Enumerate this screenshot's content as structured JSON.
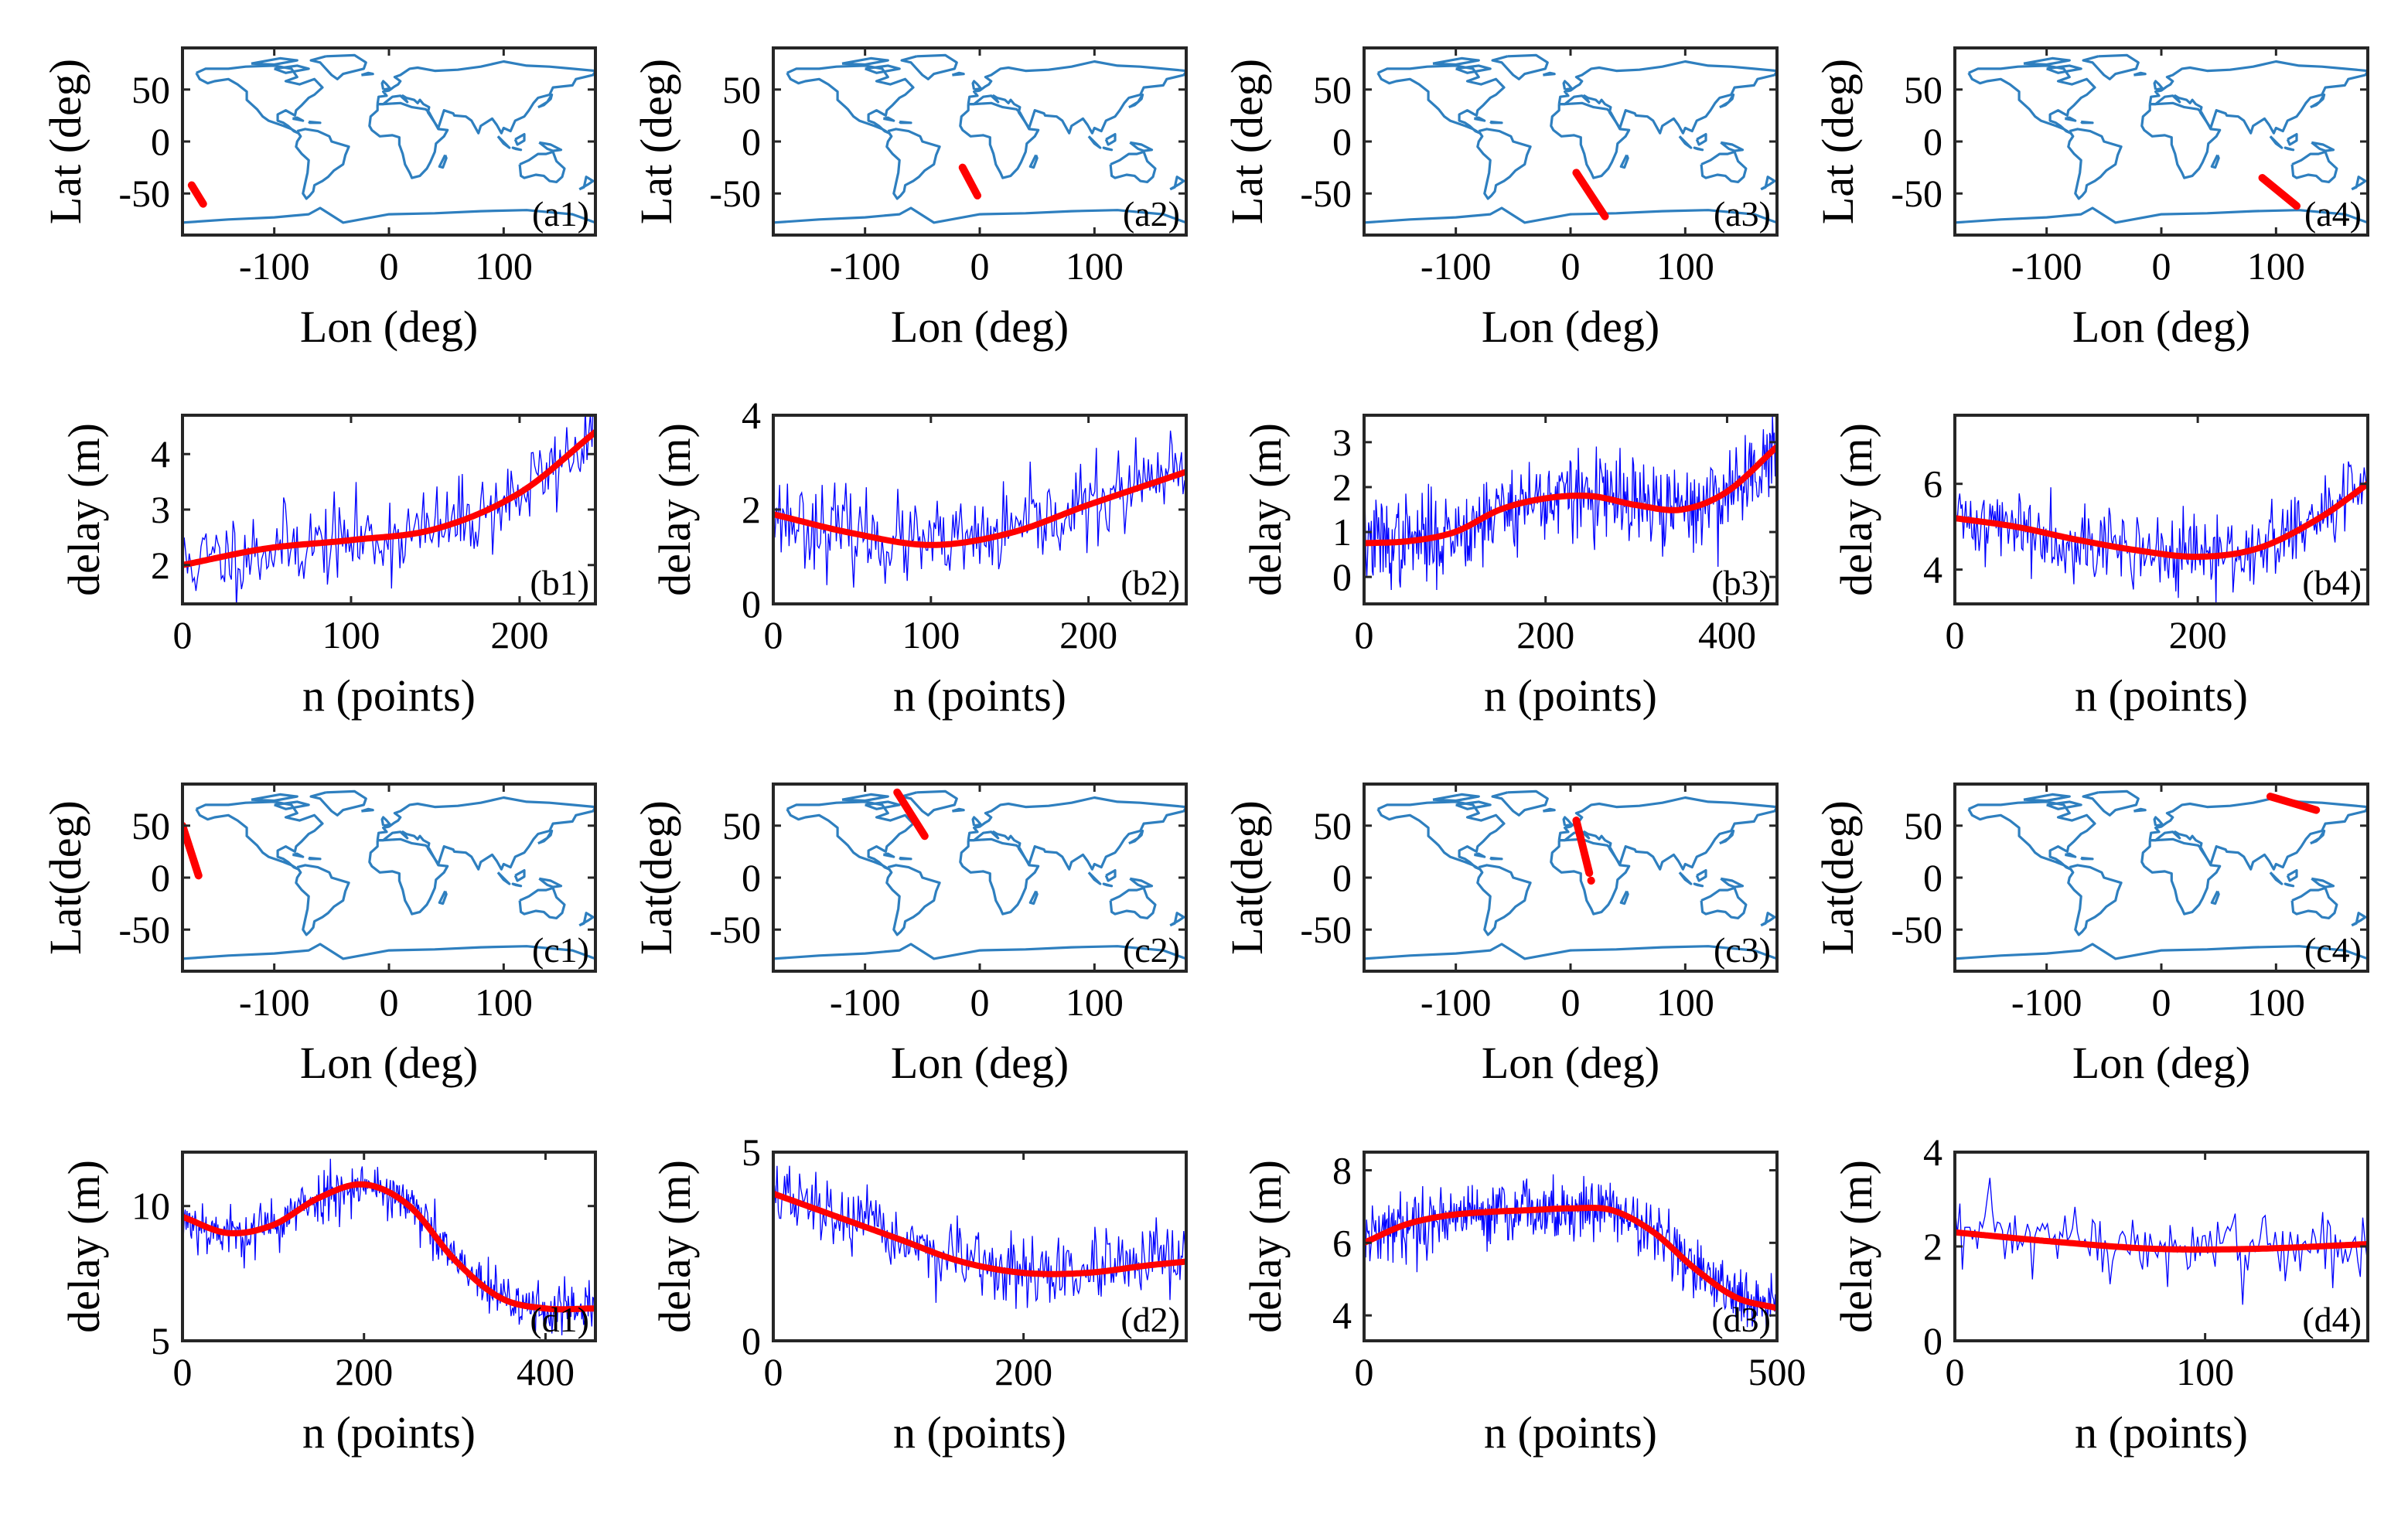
{
  "chart_data": [
    {
      "id": "a1",
      "type": "map",
      "label": "(a1)",
      "xlabel": "Lon (deg)",
      "ylabel": "Lat (deg)",
      "xlim": [
        -180,
        180
      ],
      "ylim": [
        -90,
        90
      ],
      "xticks": [
        -100,
        0,
        100
      ],
      "yticks": [
        -50,
        0,
        50
      ],
      "track": {
        "lon": [
          -172,
          -162
        ],
        "lat": [
          -42,
          -60
        ]
      },
      "colors": {
        "coast": "#2e7fbf",
        "track": "#ff0000"
      }
    },
    {
      "id": "a2",
      "type": "map",
      "label": "(a2)",
      "xlabel": "Lon (deg)",
      "ylabel": "Lat (deg)",
      "xlim": [
        -180,
        180
      ],
      "ylim": [
        -90,
        90
      ],
      "xticks": [
        -100,
        0,
        100
      ],
      "yticks": [
        -50,
        0,
        50
      ],
      "track": {
        "lon": [
          -15,
          -2
        ],
        "lat": [
          -25,
          -52
        ]
      },
      "colors": {
        "coast": "#2e7fbf",
        "track": "#ff0000"
      }
    },
    {
      "id": "a3",
      "type": "map",
      "label": "(a3)",
      "xlabel": "Lon (deg)",
      "ylabel": "Lat (deg)",
      "xlim": [
        -180,
        180
      ],
      "ylim": [
        -90,
        90
      ],
      "xticks": [
        -100,
        0,
        100
      ],
      "yticks": [
        -50,
        0,
        50
      ],
      "track": {
        "lon": [
          5,
          30
        ],
        "lat": [
          -30,
          -72
        ]
      },
      "colors": {
        "coast": "#2e7fbf",
        "track": "#ff0000"
      }
    },
    {
      "id": "a4",
      "type": "map",
      "label": "(a4)",
      "xlabel": "Lon (deg)",
      "ylabel": "Lat (deg)",
      "xlim": [
        -180,
        180
      ],
      "ylim": [
        -90,
        90
      ],
      "xticks": [
        -100,
        0,
        100
      ],
      "yticks": [
        -50,
        0,
        50
      ],
      "track": {
        "lon": [
          88,
          118
        ],
        "lat": [
          -35,
          -62
        ]
      },
      "colors": {
        "coast": "#2e7fbf",
        "track": "#ff0000"
      }
    },
    {
      "id": "b1",
      "type": "line",
      "label": "(b1)",
      "xlabel": "n (points)",
      "ylabel": "delay (m)",
      "xlim": [
        0,
        245
      ],
      "ylim": [
        1.3,
        4.7
      ],
      "xticks": [
        0,
        100,
        200
      ],
      "yticks": [
        2,
        3,
        4
      ],
      "fit": {
        "x": [
          0,
          50,
          100,
          150,
          200,
          245
        ],
        "y": [
          2.0,
          2.3,
          2.45,
          2.65,
          3.3,
          4.4
        ]
      },
      "noise_sd": 0.38,
      "seed": 11,
      "colors": {
        "noisy": "#0000ff",
        "fit": "#ff0000"
      }
    },
    {
      "id": "b2",
      "type": "line",
      "label": "(b2)",
      "xlabel": "n (points)",
      "ylabel": "delay (m)",
      "xlim": [
        0,
        262
      ],
      "ylim": [
        0,
        4
      ],
      "xticks": [
        0,
        100,
        200
      ],
      "yticks": [
        0,
        2,
        4
      ],
      "fit": {
        "x": [
          0,
          50,
          100,
          150,
          200,
          262
        ],
        "y": [
          1.9,
          1.5,
          1.25,
          1.5,
          2.1,
          2.8
        ]
      },
      "noise_sd": 0.45,
      "seed": 23,
      "colors": {
        "noisy": "#0000ff",
        "fit": "#ff0000"
      }
    },
    {
      "id": "b3",
      "type": "line",
      "label": "(b3)",
      "xlabel": "n (points)",
      "ylabel": "delay (m)",
      "xlim": [
        0,
        455
      ],
      "ylim": [
        -0.6,
        3.6
      ],
      "xticks": [
        0,
        200,
        400
      ],
      "yticks": [
        0,
        1,
        2,
        3
      ],
      "fit": {
        "x": [
          0,
          50,
          100,
          150,
          200,
          250,
          300,
          350,
          400,
          455
        ],
        "y": [
          0.75,
          0.8,
          1.0,
          1.5,
          1.75,
          1.8,
          1.6,
          1.5,
          1.9,
          2.9
        ]
      },
      "noise_sd": 0.5,
      "seed": 37,
      "colors": {
        "noisy": "#0000ff",
        "fit": "#ff0000"
      }
    },
    {
      "id": "b4",
      "type": "line",
      "label": "(b4)",
      "xlabel": "n (points)",
      "ylabel": "delay (m)",
      "xlim": [
        0,
        340
      ],
      "ylim": [
        3.2,
        7.6
      ],
      "xticks": [
        0,
        200
      ],
      "yticks": [
        4,
        6
      ],
      "fit": {
        "x": [
          0,
          50,
          100,
          150,
          200,
          250,
          300,
          340
        ],
        "y": [
          5.2,
          5.0,
          4.7,
          4.45,
          4.3,
          4.5,
          5.2,
          6.0
        ]
      },
      "noise_sd": 0.45,
      "seed": 41,
      "colors": {
        "noisy": "#0000ff",
        "fit": "#ff0000"
      }
    },
    {
      "id": "c1",
      "type": "map",
      "label": "(c1)",
      "xlabel": "Lon (deg)",
      "ylabel": "Lat(deg)",
      "xlim": [
        -180,
        180
      ],
      "ylim": [
        -90,
        90
      ],
      "xticks": [
        -100,
        0,
        100
      ],
      "yticks": [
        -50,
        0,
        50
      ],
      "track": {
        "lon": [
          -180,
          -166
        ],
        "lat": [
          50,
          2
        ]
      },
      "colors": {
        "coast": "#2e7fbf",
        "track": "#ff0000"
      }
    },
    {
      "id": "c2",
      "type": "map",
      "label": "(c2)",
      "xlabel": "Lon (deg)",
      "ylabel": "Lat(deg)",
      "xlim": [
        -180,
        180
      ],
      "ylim": [
        -90,
        90
      ],
      "xticks": [
        -100,
        0,
        100
      ],
      "yticks": [
        -50,
        0,
        50
      ],
      "track": {
        "lon": [
          -72,
          -48
        ],
        "lat": [
          82,
          40
        ]
      },
      "colors": {
        "coast": "#2e7fbf",
        "track": "#ff0000"
      }
    },
    {
      "id": "c3",
      "type": "map",
      "label": "(c3)",
      "xlabel": "Lon (deg)",
      "ylabel": "Lat(deg)",
      "xlim": [
        -180,
        180
      ],
      "ylim": [
        -90,
        90
      ],
      "xticks": [
        -100,
        0,
        100
      ],
      "yticks": [
        -50,
        0,
        50
      ],
      "track": {
        "lon": [
          5,
          18
        ],
        "lat": [
          55,
          -3
        ]
      },
      "colors": {
        "coast": "#2e7fbf",
        "track": "#ff0000"
      }
    },
    {
      "id": "c4",
      "type": "map",
      "label": "(c4)",
      "xlabel": "Lon (deg)",
      "ylabel": "Lat(deg)",
      "xlim": [
        -180,
        180
      ],
      "ylim": [
        -90,
        90
      ],
      "xticks": [
        -100,
        0,
        100
      ],
      "yticks": [
        -50,
        0,
        50
      ],
      "track": {
        "lon": [
          95,
          135
        ],
        "lat": [
          78,
          65
        ]
      },
      "colors": {
        "coast": "#2e7fbf",
        "track": "#ff0000"
      }
    },
    {
      "id": "d1",
      "type": "line",
      "label": "(d1)",
      "xlabel": "n (points)",
      "ylabel": "delay (m)",
      "xlim": [
        0,
        455
      ],
      "ylim": [
        5,
        12
      ],
      "xticks": [
        0,
        200,
        400
      ],
      "yticks": [
        5,
        10
      ],
      "fit": {
        "x": [
          0,
          50,
          100,
          150,
          200,
          250,
          300,
          350,
          400,
          455
        ],
        "y": [
          9.6,
          9.0,
          9.3,
          10.3,
          10.8,
          10.0,
          8.0,
          6.6,
          6.2,
          6.2
        ]
      },
      "noise_sd": 0.5,
      "seed": 53,
      "colors": {
        "noisy": "#0000ff",
        "fit": "#ff0000"
      }
    },
    {
      "id": "d2",
      "type": "line",
      "label": "(d2)",
      "xlabel": "n (points)",
      "ylabel": "delay (m)",
      "xlim": [
        0,
        330
      ],
      "ylim": [
        0,
        5
      ],
      "xticks": [
        0,
        200
      ],
      "yticks": [
        0,
        5
      ],
      "fit": {
        "x": [
          0,
          50,
          100,
          150,
          200,
          250,
          300,
          330
        ],
        "y": [
          3.9,
          3.3,
          2.7,
          2.1,
          1.8,
          1.8,
          2.0,
          2.1
        ]
      },
      "noise_sd": 0.45,
      "seed": 67,
      "colors": {
        "noisy": "#0000ff",
        "fit": "#ff0000"
      }
    },
    {
      "id": "d3",
      "type": "line",
      "label": "(d3)",
      "xlabel": "n (points)",
      "ylabel": "delay (m)",
      "xlim": [
        0,
        500
      ],
      "ylim": [
        3.3,
        8.5
      ],
      "xticks": [
        0,
        500
      ],
      "yticks": [
        4,
        6,
        8
      ],
      "fit": {
        "x": [
          0,
          50,
          100,
          150,
          200,
          250,
          300,
          350,
          400,
          450,
          500
        ],
        "y": [
          6.0,
          6.5,
          6.75,
          6.85,
          6.9,
          6.95,
          6.9,
          6.3,
          5.3,
          4.5,
          4.2
        ]
      },
      "noise_sd": 0.45,
      "seed": 79,
      "colors": {
        "noisy": "#0000ff",
        "fit": "#ff0000"
      }
    },
    {
      "id": "d4",
      "type": "line",
      "label": "(d4)",
      "xlabel": "n (points)",
      "ylabel": "delay (m)",
      "xlim": [
        0,
        165
      ],
      "ylim": [
        0,
        4
      ],
      "xticks": [
        0,
        100
      ],
      "yticks": [
        0,
        2,
        4
      ],
      "fit": {
        "x": [
          0,
          40,
          80,
          120,
          165
        ],
        "y": [
          2.3,
          2.1,
          1.95,
          1.95,
          2.05
        ]
      },
      "noise_sd": 0.4,
      "seed": 97,
      "colors": {
        "noisy": "#0000ff",
        "fit": "#ff0000"
      }
    }
  ]
}
